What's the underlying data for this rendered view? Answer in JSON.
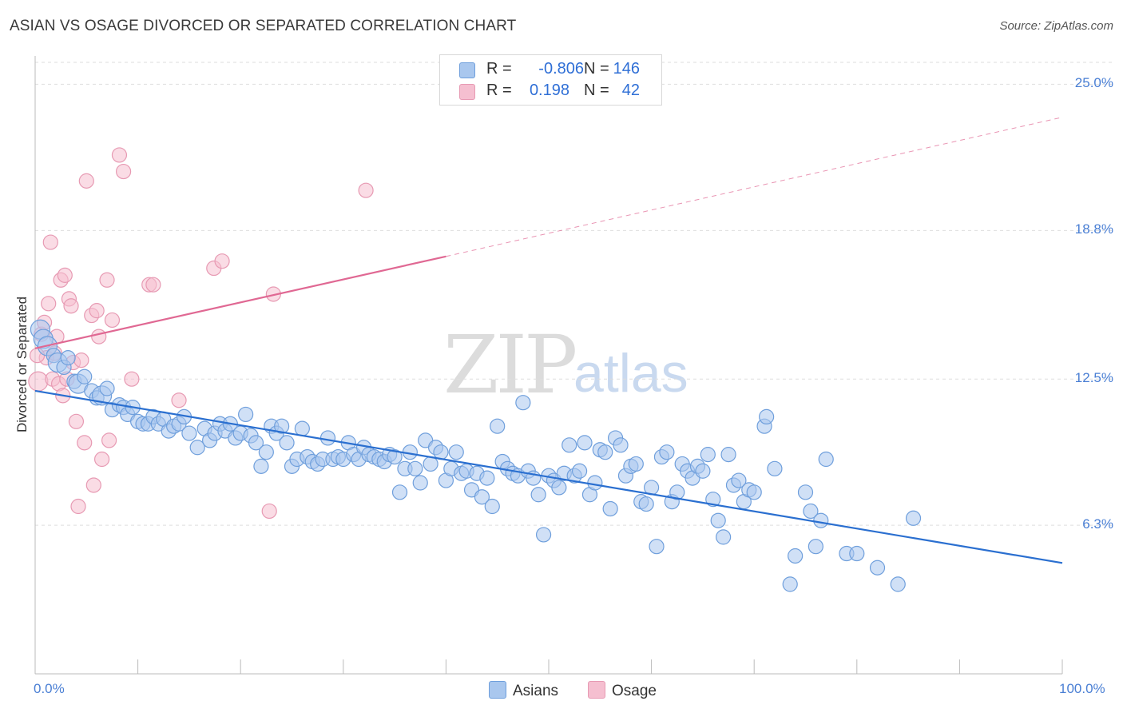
{
  "title": "ASIAN VS OSAGE DIVORCED OR SEPARATED CORRELATION CHART",
  "source": "Source: ZipAtlas.com",
  "watermark": {
    "zip": "ZIP",
    "atlas": "atlas"
  },
  "colors": {
    "asian_fill": "#a9c7ee",
    "asian_stroke": "#6f9fdc",
    "asian_line": "#2a6fd0",
    "osage_fill": "#f5bfd0",
    "osage_stroke": "#e79ab3",
    "osage_line": "#e06893",
    "grid": "#dedede",
    "tick_text": "#4a7fd4"
  },
  "legend": {
    "rows": [
      {
        "r_label": "R =",
        "r_value": "-0.806",
        "n_label": "N =",
        "n_value": "146",
        "series": "asian"
      },
      {
        "r_label": "R =",
        "r_value": "0.198",
        "n_label": "N =",
        "n_value": "42",
        "series": "osage"
      }
    ]
  },
  "bottom_legend": [
    {
      "label": "Asians",
      "series": "asian"
    },
    {
      "label": "Osage",
      "series": "osage"
    }
  ],
  "chart_data": {
    "type": "scatter",
    "title": "ASIAN VS OSAGE DIVORCED OR SEPARATED CORRELATION CHART",
    "xlabel": "",
    "ylabel": "Divorced or Separated",
    "xlim": [
      0,
      100
    ],
    "ylim": [
      0,
      26.2
    ],
    "x_tick_labels": [
      "0.0%",
      "100.0%"
    ],
    "y_ticks": [
      {
        "value": 6.3,
        "label": "6.3%"
      },
      {
        "value": 12.5,
        "label": "12.5%"
      },
      {
        "value": 18.8,
        "label": "18.8%"
      },
      {
        "value": 25.0,
        "label": "25.0%"
      }
    ],
    "grid": true,
    "legend_position": "top-center",
    "series": [
      {
        "name": "Asians",
        "trend": {
          "x": [
            0,
            100
          ],
          "y": [
            12.0,
            4.7
          ]
        },
        "points": [
          {
            "x": 0.5,
            "y": 14.6,
            "s": 2
          },
          {
            "x": 0.8,
            "y": 14.2,
            "s": 2
          },
          {
            "x": 1.2,
            "y": 13.9,
            "s": 2
          },
          {
            "x": 1.8,
            "y": 13.5,
            "s": 1
          },
          {
            "x": 2.2,
            "y": 13.2,
            "s": 2
          },
          {
            "x": 2.8,
            "y": 13.0,
            "s": 1
          },
          {
            "x": 3.2,
            "y": 13.4,
            "s": 1
          },
          {
            "x": 3.8,
            "y": 12.4,
            "s": 1
          },
          {
            "x": 4.2,
            "y": 12.3,
            "s": 2
          },
          {
            "x": 4.8,
            "y": 12.6,
            "s": 1
          },
          {
            "x": 5.5,
            "y": 12.0,
            "s": 1
          },
          {
            "x": 6.0,
            "y": 11.7,
            "s": 1
          },
          {
            "x": 6.5,
            "y": 11.8,
            "s": 2
          },
          {
            "x": 7.0,
            "y": 12.1,
            "s": 1
          },
          {
            "x": 7.5,
            "y": 11.2,
            "s": 1
          },
          {
            "x": 8.2,
            "y": 11.4,
            "s": 1
          },
          {
            "x": 8.6,
            "y": 11.3,
            "s": 1
          },
          {
            "x": 9.0,
            "y": 11.0,
            "s": 1
          },
          {
            "x": 9.5,
            "y": 11.3,
            "s": 1
          },
          {
            "x": 10.0,
            "y": 10.7,
            "s": 1
          },
          {
            "x": 10.5,
            "y": 10.6,
            "s": 1
          },
          {
            "x": 11.0,
            "y": 10.6,
            "s": 1
          },
          {
            "x": 11.5,
            "y": 10.9,
            "s": 1
          },
          {
            "x": 12.0,
            "y": 10.6,
            "s": 1
          },
          {
            "x": 12.5,
            "y": 10.8,
            "s": 1
          },
          {
            "x": 13.0,
            "y": 10.3,
            "s": 1
          },
          {
            "x": 13.5,
            "y": 10.5,
            "s": 1
          },
          {
            "x": 14.0,
            "y": 10.6,
            "s": 1
          },
          {
            "x": 14.5,
            "y": 10.9,
            "s": 1
          },
          {
            "x": 15.0,
            "y": 10.2,
            "s": 1
          },
          {
            "x": 15.8,
            "y": 9.6,
            "s": 1
          },
          {
            "x": 16.5,
            "y": 10.4,
            "s": 1
          },
          {
            "x": 17.0,
            "y": 9.9,
            "s": 1
          },
          {
            "x": 17.5,
            "y": 10.2,
            "s": 1
          },
          {
            "x": 18.0,
            "y": 10.6,
            "s": 1
          },
          {
            "x": 18.5,
            "y": 10.3,
            "s": 1
          },
          {
            "x": 19.0,
            "y": 10.6,
            "s": 1
          },
          {
            "x": 19.5,
            "y": 10.0,
            "s": 1
          },
          {
            "x": 20.0,
            "y": 10.2,
            "s": 1
          },
          {
            "x": 20.5,
            "y": 11.0,
            "s": 1
          },
          {
            "x": 21.0,
            "y": 10.1,
            "s": 1
          },
          {
            "x": 21.5,
            "y": 9.8,
            "s": 1
          },
          {
            "x": 22.0,
            "y": 8.8,
            "s": 1
          },
          {
            "x": 22.5,
            "y": 9.4,
            "s": 1
          },
          {
            "x": 23.0,
            "y": 10.5,
            "s": 1
          },
          {
            "x": 23.5,
            "y": 10.2,
            "s": 1
          },
          {
            "x": 24.0,
            "y": 10.5,
            "s": 1
          },
          {
            "x": 24.5,
            "y": 9.8,
            "s": 1
          },
          {
            "x": 25.0,
            "y": 8.8,
            "s": 1
          },
          {
            "x": 25.5,
            "y": 9.1,
            "s": 1
          },
          {
            "x": 26.0,
            "y": 10.4,
            "s": 1
          },
          {
            "x": 26.5,
            "y": 9.2,
            "s": 1
          },
          {
            "x": 27.0,
            "y": 9.0,
            "s": 1
          },
          {
            "x": 27.5,
            "y": 8.9,
            "s": 1
          },
          {
            "x": 28.0,
            "y": 9.1,
            "s": 1
          },
          {
            "x": 28.5,
            "y": 10.0,
            "s": 1
          },
          {
            "x": 29.0,
            "y": 9.1,
            "s": 1
          },
          {
            "x": 29.5,
            "y": 9.2,
            "s": 1
          },
          {
            "x": 30.0,
            "y": 9.1,
            "s": 1
          },
          {
            "x": 30.5,
            "y": 9.8,
            "s": 1
          },
          {
            "x": 31.0,
            "y": 9.3,
            "s": 1
          },
          {
            "x": 31.5,
            "y": 9.1,
            "s": 1
          },
          {
            "x": 32.0,
            "y": 9.6,
            "s": 1
          },
          {
            "x": 32.5,
            "y": 9.3,
            "s": 1
          },
          {
            "x": 33.0,
            "y": 9.2,
            "s": 1
          },
          {
            "x": 33.5,
            "y": 9.1,
            "s": 1
          },
          {
            "x": 34.0,
            "y": 9.0,
            "s": 1
          },
          {
            "x": 34.5,
            "y": 9.3,
            "s": 1
          },
          {
            "x": 35.0,
            "y": 9.2,
            "s": 1
          },
          {
            "x": 35.5,
            "y": 7.7,
            "s": 1
          },
          {
            "x": 36.0,
            "y": 8.7,
            "s": 1
          },
          {
            "x": 36.5,
            "y": 9.4,
            "s": 1
          },
          {
            "x": 37.0,
            "y": 8.7,
            "s": 1
          },
          {
            "x": 37.5,
            "y": 8.1,
            "s": 1
          },
          {
            "x": 38.0,
            "y": 9.9,
            "s": 1
          },
          {
            "x": 38.5,
            "y": 8.9,
            "s": 1
          },
          {
            "x": 39.0,
            "y": 9.6,
            "s": 1
          },
          {
            "x": 39.5,
            "y": 9.4,
            "s": 1
          },
          {
            "x": 40.0,
            "y": 8.2,
            "s": 1
          },
          {
            "x": 40.5,
            "y": 8.7,
            "s": 1
          },
          {
            "x": 41.0,
            "y": 9.4,
            "s": 1
          },
          {
            "x": 41.5,
            "y": 8.5,
            "s": 1
          },
          {
            "x": 42.0,
            "y": 8.6,
            "s": 1
          },
          {
            "x": 42.5,
            "y": 7.8,
            "s": 1
          },
          {
            "x": 43.0,
            "y": 8.5,
            "s": 1
          },
          {
            "x": 43.5,
            "y": 7.5,
            "s": 1
          },
          {
            "x": 44.0,
            "y": 8.3,
            "s": 1
          },
          {
            "x": 44.5,
            "y": 7.1,
            "s": 1
          },
          {
            "x": 45.0,
            "y": 10.5,
            "s": 1
          },
          {
            "x": 45.5,
            "y": 9.0,
            "s": 1
          },
          {
            "x": 46.0,
            "y": 8.7,
            "s": 1
          },
          {
            "x": 46.5,
            "y": 8.5,
            "s": 1
          },
          {
            "x": 47.0,
            "y": 8.4,
            "s": 1
          },
          {
            "x": 47.5,
            "y": 11.5,
            "s": 1
          },
          {
            "x": 48.0,
            "y": 8.6,
            "s": 1
          },
          {
            "x": 48.5,
            "y": 8.3,
            "s": 1
          },
          {
            "x": 49.0,
            "y": 7.6,
            "s": 1
          },
          {
            "x": 49.5,
            "y": 5.9,
            "s": 1
          },
          {
            "x": 50.0,
            "y": 8.4,
            "s": 1
          },
          {
            "x": 50.5,
            "y": 8.2,
            "s": 1
          },
          {
            "x": 51.0,
            "y": 7.9,
            "s": 1
          },
          {
            "x": 51.5,
            "y": 8.5,
            "s": 1
          },
          {
            "x": 52.0,
            "y": 9.7,
            "s": 1
          },
          {
            "x": 52.5,
            "y": 8.4,
            "s": 1
          },
          {
            "x": 53.0,
            "y": 8.6,
            "s": 1
          },
          {
            "x": 53.5,
            "y": 9.8,
            "s": 1
          },
          {
            "x": 54.0,
            "y": 7.6,
            "s": 1
          },
          {
            "x": 54.5,
            "y": 8.1,
            "s": 1
          },
          {
            "x": 55.0,
            "y": 9.5,
            "s": 1
          },
          {
            "x": 55.5,
            "y": 9.4,
            "s": 1
          },
          {
            "x": 56.0,
            "y": 7.0,
            "s": 1
          },
          {
            "x": 56.5,
            "y": 10.0,
            "s": 1
          },
          {
            "x": 57.0,
            "y": 9.7,
            "s": 1
          },
          {
            "x": 57.5,
            "y": 8.4,
            "s": 1
          },
          {
            "x": 58.0,
            "y": 8.8,
            "s": 1
          },
          {
            "x": 58.5,
            "y": 8.9,
            "s": 1
          },
          {
            "x": 59.0,
            "y": 7.3,
            "s": 1
          },
          {
            "x": 59.5,
            "y": 7.2,
            "s": 1
          },
          {
            "x": 60.0,
            "y": 7.9,
            "s": 1
          },
          {
            "x": 60.5,
            "y": 5.4,
            "s": 1
          },
          {
            "x": 61.0,
            "y": 9.2,
            "s": 1
          },
          {
            "x": 61.5,
            "y": 9.4,
            "s": 1
          },
          {
            "x": 62.0,
            "y": 7.3,
            "s": 1
          },
          {
            "x": 62.5,
            "y": 7.7,
            "s": 1
          },
          {
            "x": 63.0,
            "y": 8.9,
            "s": 1
          },
          {
            "x": 63.5,
            "y": 8.6,
            "s": 1
          },
          {
            "x": 64.0,
            "y": 8.3,
            "s": 1
          },
          {
            "x": 64.5,
            "y": 8.8,
            "s": 1
          },
          {
            "x": 65.0,
            "y": 8.6,
            "s": 1
          },
          {
            "x": 65.5,
            "y": 9.3,
            "s": 1
          },
          {
            "x": 66.0,
            "y": 7.4,
            "s": 1
          },
          {
            "x": 66.5,
            "y": 6.5,
            "s": 1
          },
          {
            "x": 67.0,
            "y": 5.8,
            "s": 1
          },
          {
            "x": 67.5,
            "y": 9.3,
            "s": 1
          },
          {
            "x": 68.0,
            "y": 8.0,
            "s": 1
          },
          {
            "x": 68.5,
            "y": 8.2,
            "s": 1
          },
          {
            "x": 69.0,
            "y": 7.3,
            "s": 1
          },
          {
            "x": 69.5,
            "y": 7.8,
            "s": 1
          },
          {
            "x": 70.0,
            "y": 7.7,
            "s": 1
          },
          {
            "x": 71.0,
            "y": 10.5,
            "s": 1
          },
          {
            "x": 71.2,
            "y": 10.9,
            "s": 1
          },
          {
            "x": 72.0,
            "y": 8.7,
            "s": 1
          },
          {
            "x": 73.5,
            "y": 3.8,
            "s": 1
          },
          {
            "x": 74.0,
            "y": 5.0,
            "s": 1
          },
          {
            "x": 75.0,
            "y": 7.7,
            "s": 1
          },
          {
            "x": 75.5,
            "y": 6.9,
            "s": 1
          },
          {
            "x": 76.0,
            "y": 5.4,
            "s": 1
          },
          {
            "x": 76.5,
            "y": 6.5,
            "s": 1
          },
          {
            "x": 77.0,
            "y": 9.1,
            "s": 1
          },
          {
            "x": 79.0,
            "y": 5.1,
            "s": 1
          },
          {
            "x": 80.0,
            "y": 5.1,
            "s": 1
          },
          {
            "x": 82.0,
            "y": 4.5,
            "s": 1
          },
          {
            "x": 84.0,
            "y": 3.8,
            "s": 1
          },
          {
            "x": 85.5,
            "y": 6.6,
            "s": 1
          }
        ]
      },
      {
        "name": "Osage",
        "trend": {
          "x": [
            0,
            40
          ],
          "y": [
            13.8,
            17.7
          ],
          "dashed_to": {
            "x": 100,
            "y": 23.6
          }
        },
        "points": [
          {
            "x": 0.3,
            "y": 12.4,
            "s": 2
          },
          {
            "x": 0.6,
            "y": 14.4,
            "s": 1
          },
          {
            "x": 0.9,
            "y": 14.9,
            "s": 1
          },
          {
            "x": 1.1,
            "y": 13.4,
            "s": 1
          },
          {
            "x": 1.3,
            "y": 15.7,
            "s": 1
          },
          {
            "x": 1.5,
            "y": 18.3,
            "s": 1
          },
          {
            "x": 1.7,
            "y": 12.5,
            "s": 1
          },
          {
            "x": 1.9,
            "y": 13.6,
            "s": 1
          },
          {
            "x": 2.1,
            "y": 14.3,
            "s": 1
          },
          {
            "x": 2.3,
            "y": 12.3,
            "s": 1
          },
          {
            "x": 2.5,
            "y": 16.7,
            "s": 1
          },
          {
            "x": 2.7,
            "y": 11.8,
            "s": 1
          },
          {
            "x": 2.9,
            "y": 16.9,
            "s": 1
          },
          {
            "x": 3.1,
            "y": 12.5,
            "s": 1
          },
          {
            "x": 3.3,
            "y": 15.9,
            "s": 1
          },
          {
            "x": 3.5,
            "y": 15.6,
            "s": 1
          },
          {
            "x": 3.7,
            "y": 13.2,
            "s": 1
          },
          {
            "x": 4.0,
            "y": 10.7,
            "s": 1
          },
          {
            "x": 4.2,
            "y": 7.1,
            "s": 1
          },
          {
            "x": 4.5,
            "y": 13.3,
            "s": 1
          },
          {
            "x": 4.8,
            "y": 9.8,
            "s": 1
          },
          {
            "x": 5.0,
            "y": 20.9,
            "s": 1
          },
          {
            "x": 5.5,
            "y": 15.2,
            "s": 1
          },
          {
            "x": 5.7,
            "y": 8.0,
            "s": 1
          },
          {
            "x": 6.0,
            "y": 15.4,
            "s": 1
          },
          {
            "x": 6.2,
            "y": 14.3,
            "s": 1
          },
          {
            "x": 6.5,
            "y": 9.1,
            "s": 1
          },
          {
            "x": 7.0,
            "y": 16.7,
            "s": 1
          },
          {
            "x": 7.2,
            "y": 9.9,
            "s": 1
          },
          {
            "x": 7.5,
            "y": 15.0,
            "s": 1
          },
          {
            "x": 8.2,
            "y": 22.0,
            "s": 1
          },
          {
            "x": 8.6,
            "y": 21.3,
            "s": 1
          },
          {
            "x": 9.4,
            "y": 12.5,
            "s": 1
          },
          {
            "x": 11.1,
            "y": 16.5,
            "s": 1
          },
          {
            "x": 11.5,
            "y": 16.5,
            "s": 1
          },
          {
            "x": 14.0,
            "y": 11.6,
            "s": 1
          },
          {
            "x": 17.4,
            "y": 17.2,
            "s": 1
          },
          {
            "x": 18.2,
            "y": 17.5,
            "s": 1
          },
          {
            "x": 22.8,
            "y": 6.9,
            "s": 1
          },
          {
            "x": 23.2,
            "y": 16.1,
            "s": 1
          },
          {
            "x": 32.2,
            "y": 20.5,
            "s": 1
          },
          {
            "x": 0.2,
            "y": 13.5,
            "s": 1
          }
        ]
      }
    ]
  }
}
